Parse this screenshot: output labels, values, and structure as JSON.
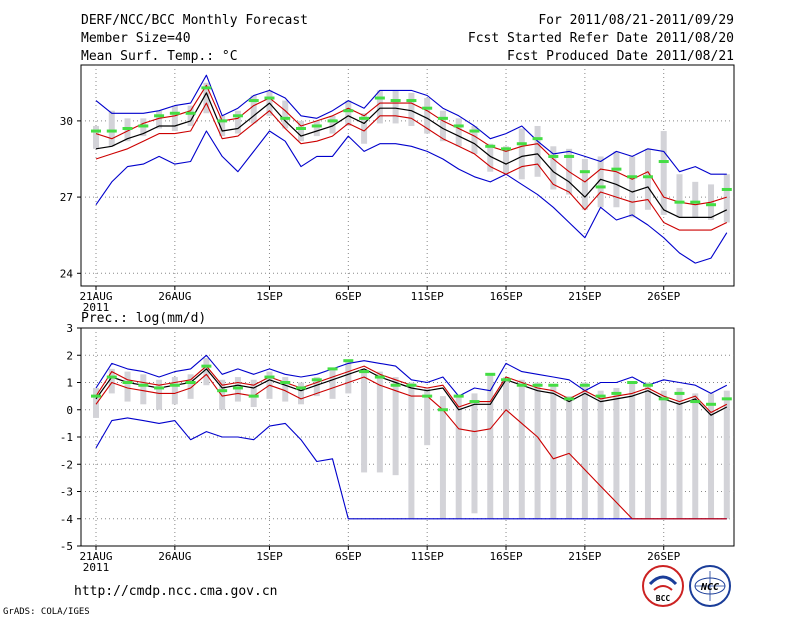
{
  "header": {
    "title": "DERF/NCC/BCC Monthly Forecast",
    "member_size": "Member Size=40",
    "period": "For 2011/08/21-2011/09/29",
    "fcst_started": "Fcst Started Refer Date 2011/08/20",
    "fcst_produced": "Fcst Produced Date 2011/08/21"
  },
  "footer": {
    "url": "http://cmdp.ncc.cma.gov.cn",
    "grads": "GrADS: COLA/IGES",
    "logo_bcc": "BCC",
    "logo_ncc": "NCC"
  },
  "colors": {
    "max_min": "#0000cc",
    "mean": "#000000",
    "std_band": "#cc0000",
    "box": "#d3d3d8",
    "median": "#44dd44",
    "grid": "#888888"
  },
  "chart_data": [
    {
      "type": "line",
      "ylabel": "Mean Surf. Temp.: °C",
      "ylim": [
        23.5,
        32.2
      ],
      "yticks": [
        24,
        27,
        30
      ],
      "x_day_index_start": 1,
      "x_ticks": [
        {
          "day": 1,
          "label": "21AUG",
          "sublabel": "2011"
        },
        {
          "day": 6,
          "label": "26AUG"
        },
        {
          "day": 12,
          "label": "1SEP"
        },
        {
          "day": 17,
          "label": "6SEP"
        },
        {
          "day": 22,
          "label": "11SEP"
        },
        {
          "day": 27,
          "label": "16SEP"
        },
        {
          "day": 32,
          "label": "21SEP"
        },
        {
          "day": 37,
          "label": "26SEP"
        }
      ],
      "series": [
        {
          "name": "max",
          "role": "max",
          "values": [
            30.8,
            30.3,
            30.3,
            30.3,
            30.4,
            30.6,
            30.7,
            31.8,
            30.2,
            30.5,
            31.0,
            31.2,
            30.9,
            30.2,
            30.1,
            30.4,
            30.8,
            30.5,
            31.2,
            31.2,
            31.2,
            31.0,
            30.5,
            30.2,
            29.8,
            29.3,
            29.5,
            29.8,
            29.2,
            28.7,
            28.8,
            28.6,
            28.4,
            28.8,
            28.6,
            28.9,
            28.8,
            28.0,
            28.2,
            27.9,
            27.9
          ]
        },
        {
          "name": "min",
          "role": "min",
          "values": [
            26.7,
            27.6,
            28.2,
            28.3,
            28.6,
            28.3,
            28.4,
            29.6,
            28.6,
            28.0,
            28.8,
            29.6,
            29.2,
            28.2,
            28.6,
            28.6,
            29.4,
            28.8,
            29.1,
            29.1,
            29.0,
            28.8,
            28.5,
            28.1,
            27.8,
            27.6,
            27.9,
            27.5,
            27.1,
            26.6,
            26.0,
            25.4,
            26.6,
            26.1,
            26.3,
            25.9,
            25.4,
            24.8,
            24.4,
            24.6,
            25.6
          ]
        },
        {
          "name": "mean",
          "role": "mean",
          "values": [
            28.9,
            29.0,
            29.3,
            29.5,
            29.8,
            29.8,
            30.0,
            31.1,
            29.6,
            29.7,
            30.2,
            30.7,
            30.0,
            29.4,
            29.6,
            29.8,
            30.2,
            29.9,
            30.5,
            30.5,
            30.4,
            30.1,
            29.7,
            29.4,
            29.1,
            28.6,
            28.3,
            28.6,
            28.7,
            28.0,
            27.6,
            27.0,
            27.7,
            27.5,
            27.2,
            27.4,
            26.5,
            26.2,
            26.2,
            26.2,
            26.5
          ]
        },
        {
          "name": "mean+std",
          "role": "std",
          "values": [
            29.5,
            29.3,
            29.6,
            29.9,
            30.1,
            30.2,
            30.4,
            31.4,
            30.0,
            30.1,
            30.6,
            30.9,
            30.4,
            29.8,
            30.0,
            30.2,
            30.5,
            30.2,
            30.7,
            30.7,
            30.7,
            30.4,
            30.0,
            29.7,
            29.4,
            29.0,
            28.8,
            29.0,
            29.1,
            28.5,
            28.0,
            27.6,
            28.1,
            28.0,
            27.7,
            28.0,
            27.0,
            26.8,
            26.7,
            26.8,
            27.0
          ]
        },
        {
          "name": "mean-std",
          "role": "std",
          "values": [
            28.5,
            28.7,
            28.9,
            29.2,
            29.5,
            29.5,
            29.6,
            30.7,
            29.3,
            29.4,
            29.9,
            30.4,
            29.7,
            29.1,
            29.2,
            29.4,
            29.9,
            29.6,
            30.2,
            30.2,
            30.1,
            29.7,
            29.3,
            29.0,
            28.7,
            28.2,
            27.9,
            28.2,
            28.3,
            27.5,
            27.2,
            26.5,
            27.2,
            27.0,
            26.8,
            26.9,
            26.0,
            25.7,
            25.7,
            25.7,
            26.0
          ]
        }
      ],
      "boxes": [
        {
          "lo": 28.9,
          "hi": 29.8,
          "median": 29.6
        },
        {
          "lo": 29.0,
          "hi": 30.4,
          "median": 29.6
        },
        {
          "lo": 29.2,
          "hi": 30.1,
          "median": 29.7
        },
        {
          "lo": 29.4,
          "hi": 30.1,
          "median": 29.8
        },
        {
          "lo": 29.7,
          "hi": 30.4,
          "median": 30.2
        },
        {
          "lo": 29.6,
          "hi": 30.6,
          "median": 30.3
        },
        {
          "lo": 29.8,
          "hi": 30.6,
          "median": 30.3
        },
        {
          "lo": 30.3,
          "hi": 31.5,
          "median": 31.3
        },
        {
          "lo": 29.4,
          "hi": 30.2,
          "median": 30.0
        },
        {
          "lo": 29.5,
          "hi": 30.4,
          "median": 30.2
        },
        {
          "lo": 29.9,
          "hi": 31.0,
          "median": 30.8
        },
        {
          "lo": 30.2,
          "hi": 31.2,
          "median": 30.9
        },
        {
          "lo": 29.7,
          "hi": 30.8,
          "median": 30.1
        },
        {
          "lo": 29.2,
          "hi": 30.0,
          "median": 29.7
        },
        {
          "lo": 29.4,
          "hi": 30.0,
          "median": 29.8
        },
        {
          "lo": 29.5,
          "hi": 30.2,
          "median": 30.0
        },
        {
          "lo": 29.8,
          "hi": 30.8,
          "median": 30.4
        },
        {
          "lo": 29.1,
          "hi": 30.3,
          "median": 30.1
        },
        {
          "lo": 29.9,
          "hi": 31.2,
          "median": 30.9
        },
        {
          "lo": 29.9,
          "hi": 31.2,
          "median": 30.8
        },
        {
          "lo": 29.8,
          "hi": 31.1,
          "median": 30.8
        },
        {
          "lo": 29.5,
          "hi": 30.9,
          "median": 30.5
        },
        {
          "lo": 29.2,
          "hi": 30.4,
          "median": 30.1
        },
        {
          "lo": 29.0,
          "hi": 30.1,
          "median": 29.8
        },
        {
          "lo": 28.7,
          "hi": 29.8,
          "median": 29.6
        },
        {
          "lo": 28.0,
          "hi": 29.1,
          "median": 29.0
        },
        {
          "lo": 27.9,
          "hi": 29.0,
          "median": 28.9
        },
        {
          "lo": 27.7,
          "hi": 29.7,
          "median": 29.1
        },
        {
          "lo": 27.8,
          "hi": 29.8,
          "median": 29.3
        },
        {
          "lo": 27.3,
          "hi": 29.0,
          "median": 28.6
        },
        {
          "lo": 27.1,
          "hi": 28.9,
          "median": 28.6
        },
        {
          "lo": 26.5,
          "hi": 28.5,
          "median": 28.0
        },
        {
          "lo": 26.6,
          "hi": 28.6,
          "median": 27.4
        },
        {
          "lo": 26.6,
          "hi": 28.8,
          "median": 28.1
        },
        {
          "lo": 26.2,
          "hi": 28.6,
          "median": 27.8
        },
        {
          "lo": 26.5,
          "hi": 28.9,
          "median": 27.8
        },
        {
          "lo": 26.3,
          "hi": 29.6,
          "median": 28.4
        },
        {
          "lo": 26.2,
          "hi": 27.9,
          "median": 26.8
        },
        {
          "lo": 26.2,
          "hi": 27.6,
          "median": 26.8
        },
        {
          "lo": 26.1,
          "hi": 27.5,
          "median": 26.7
        },
        {
          "lo": 26.0,
          "hi": 27.9,
          "median": 27.3
        }
      ]
    },
    {
      "type": "line",
      "ylabel": "Prec.: log(mm/d)",
      "ylim": [
        -5,
        3
      ],
      "yticks": [
        -5,
        -4,
        -3,
        -2,
        -1,
        0,
        1,
        2,
        3
      ],
      "x_day_index_start": 1,
      "x_ticks": [
        {
          "day": 1,
          "label": "21AUG",
          "sublabel": "2011"
        },
        {
          "day": 6,
          "label": "26AUG"
        },
        {
          "day": 12,
          "label": "1SEP"
        },
        {
          "day": 17,
          "label": "6SEP"
        },
        {
          "day": 22,
          "label": "11SEP"
        },
        {
          "day": 27,
          "label": "16SEP"
        },
        {
          "day": 32,
          "label": "21SEP"
        },
        {
          "day": 37,
          "label": "26SEP"
        }
      ],
      "series": [
        {
          "name": "max",
          "role": "max",
          "values": [
            0.8,
            1.7,
            1.5,
            1.4,
            1.2,
            1.4,
            1.5,
            2.0,
            1.3,
            1.5,
            1.3,
            1.5,
            1.3,
            1.2,
            1.3,
            1.5,
            1.7,
            1.8,
            1.7,
            1.6,
            1.1,
            1.0,
            1.2,
            0.5,
            0.8,
            0.7,
            1.7,
            1.4,
            1.3,
            1.2,
            1.1,
            0.7,
            1.0,
            1.0,
            1.2,
            0.9,
            1.1,
            1.0,
            0.9,
            0.6,
            0.9
          ]
        },
        {
          "name": "min",
          "role": "min",
          "values": [
            -1.4,
            -0.4,
            -0.3,
            -0.4,
            -0.5,
            -0.4,
            -1.1,
            -0.8,
            -1.0,
            -1.0,
            -1.1,
            -0.6,
            -0.5,
            -1.1,
            -1.9,
            -1.8,
            -4.0,
            -4.0,
            -4.0,
            -4.0,
            -4.0,
            -4.0,
            -4.0,
            -4.0,
            -4.0,
            -4.0,
            -4.0,
            -4.0,
            -4.0,
            -4.0,
            -4.0,
            -4.0,
            -4.0,
            -4.0,
            -4.0,
            -4.0,
            -4.0,
            -4.0,
            -4.0,
            -4.0,
            -4.0
          ]
        },
        {
          "name": "mean",
          "role": "mean",
          "values": [
            0.4,
            1.2,
            1.0,
            0.9,
            0.8,
            0.9,
            1.0,
            1.5,
            0.8,
            0.9,
            0.8,
            1.1,
            0.9,
            0.7,
            0.9,
            1.1,
            1.3,
            1.5,
            1.2,
            1.0,
            0.8,
            0.7,
            0.8,
            0.0,
            0.2,
            0.2,
            1.1,
            0.9,
            0.7,
            0.6,
            0.3,
            0.6,
            0.3,
            0.4,
            0.5,
            0.7,
            0.4,
            0.2,
            0.4,
            -0.2,
            0.1
          ]
        },
        {
          "name": "mean+std",
          "role": "std",
          "values": [
            0.5,
            1.4,
            1.1,
            1.0,
            0.9,
            1.0,
            1.1,
            1.6,
            0.9,
            1.0,
            0.9,
            1.2,
            1.0,
            0.8,
            1.0,
            1.2,
            1.4,
            1.6,
            1.3,
            1.1,
            0.9,
            0.8,
            0.9,
            0.1,
            0.3,
            0.3,
            1.2,
            1.0,
            0.8,
            0.7,
            0.4,
            0.7,
            0.4,
            0.5,
            0.6,
            0.8,
            0.5,
            0.3,
            0.5,
            -0.1,
            0.2
          ]
        },
        {
          "name": "mean-std",
          "role": "std",
          "values": [
            0.2,
            1.0,
            0.8,
            0.7,
            0.6,
            0.6,
            0.8,
            1.3,
            0.5,
            0.6,
            0.5,
            0.9,
            0.7,
            0.4,
            0.6,
            0.8,
            1.0,
            1.2,
            0.9,
            0.7,
            0.5,
            0.5,
            0.0,
            -0.7,
            -0.8,
            -0.7,
            0.0,
            -0.5,
            -1.0,
            -1.8,
            -1.6,
            -2.2,
            -2.8,
            -3.4,
            -4.0,
            -4.0,
            -4.0,
            -4.0,
            -4.0,
            -4.0,
            -4.0
          ]
        }
      ],
      "boxes": [
        {
          "lo": -0.3,
          "hi": 0.8,
          "median": 0.5
        },
        {
          "lo": 0.6,
          "hi": 1.5,
          "median": 1.2
        },
        {
          "lo": 0.3,
          "hi": 1.4,
          "median": 1.0
        },
        {
          "lo": 0.2,
          "hi": 1.3,
          "median": 0.9
        },
        {
          "lo": 0.0,
          "hi": 1.1,
          "median": 0.8
        },
        {
          "lo": 0.2,
          "hi": 1.2,
          "median": 0.9
        },
        {
          "lo": 0.4,
          "hi": 1.3,
          "median": 1.0
        },
        {
          "lo": 0.9,
          "hi": 1.9,
          "median": 1.6
        },
        {
          "lo": 0.0,
          "hi": 1.1,
          "median": 0.7
        },
        {
          "lo": 0.3,
          "hi": 1.2,
          "median": 0.8
        },
        {
          "lo": 0.1,
          "hi": 1.1,
          "median": 0.5
        },
        {
          "lo": 0.4,
          "hi": 1.4,
          "median": 1.2
        },
        {
          "lo": 0.3,
          "hi": 1.2,
          "median": 1.0
        },
        {
          "lo": 0.2,
          "hi": 1.0,
          "median": 0.8
        },
        {
          "lo": 0.5,
          "hi": 1.2,
          "median": 1.1
        },
        {
          "lo": 0.4,
          "hi": 1.5,
          "median": 1.5
        },
        {
          "lo": 0.6,
          "hi": 1.8,
          "median": 1.8
        },
        {
          "lo": -2.3,
          "hi": 1.5,
          "median": 1.4
        },
        {
          "lo": -2.3,
          "hi": 1.4,
          "median": 1.2
        },
        {
          "lo": -2.4,
          "hi": 1.2,
          "median": 0.9
        },
        {
          "lo": -4.0,
          "hi": 1.0,
          "median": 0.9
        },
        {
          "lo": -1.3,
          "hi": 0.8,
          "median": 0.5
        },
        {
          "lo": -4.0,
          "hi": 0.5,
          "median": 0.0
        },
        {
          "lo": -4.0,
          "hi": 0.5,
          "median": 0.5
        },
        {
          "lo": -3.8,
          "hi": 0.6,
          "median": 0.3
        },
        {
          "lo": -4.0,
          "hi": 1.3,
          "median": 1.3
        },
        {
          "lo": -4.0,
          "hi": 1.2,
          "median": 1.1
        },
        {
          "lo": -4.0,
          "hi": 1.1,
          "median": 0.9
        },
        {
          "lo": -4.0,
          "hi": 1.0,
          "median": 0.9
        },
        {
          "lo": -4.0,
          "hi": 0.9,
          "median": 0.9
        },
        {
          "lo": -4.0,
          "hi": 0.5,
          "median": 0.4
        },
        {
          "lo": -4.0,
          "hi": 1.0,
          "median": 0.9
        },
        {
          "lo": -4.0,
          "hi": 0.7,
          "median": 0.5
        },
        {
          "lo": -4.0,
          "hi": 0.8,
          "median": 0.6
        },
        {
          "lo": -4.0,
          "hi": 1.0,
          "median": 1.0
        },
        {
          "lo": -4.0,
          "hi": 1.0,
          "median": 0.9
        },
        {
          "lo": -4.0,
          "hi": 0.7,
          "median": 0.4
        },
        {
          "lo": -4.0,
          "hi": 0.8,
          "median": 0.6
        },
        {
          "lo": -4.0,
          "hi": 0.6,
          "median": 0.3
        },
        {
          "lo": -4.0,
          "hi": 0.6,
          "median": 0.2
        },
        {
          "lo": -4.0,
          "hi": 0.7,
          "median": 0.4
        }
      ]
    }
  ]
}
